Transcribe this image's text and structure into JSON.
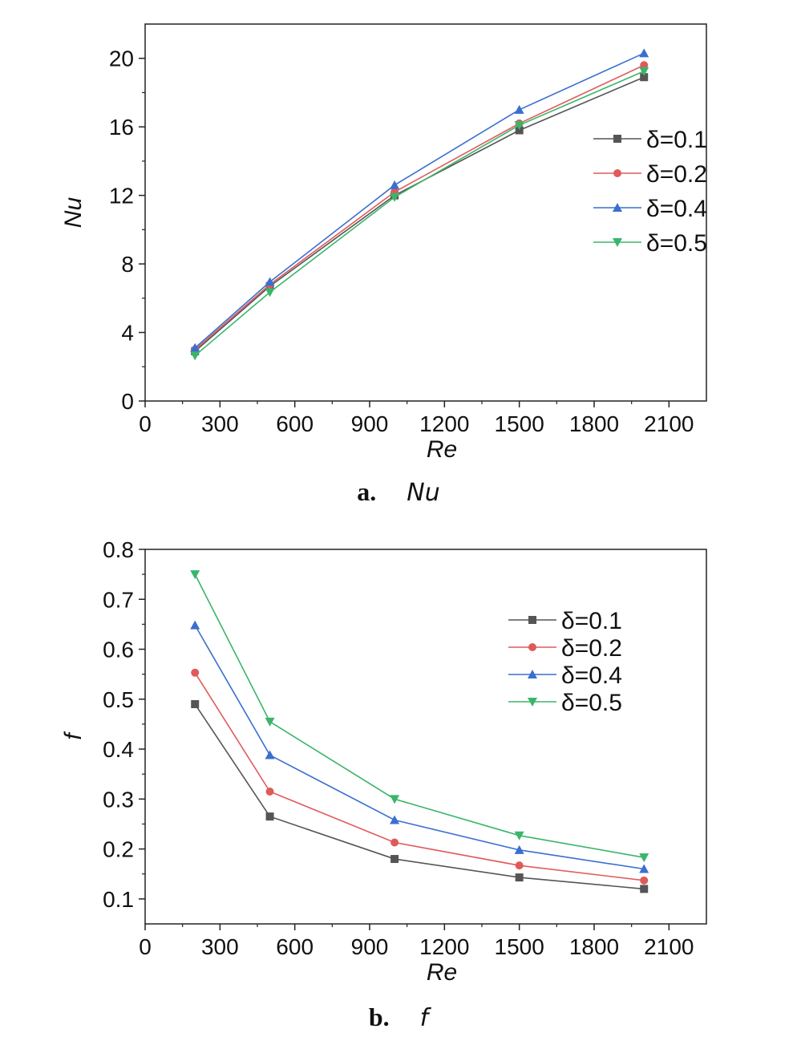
{
  "chart_data": [
    {
      "type": "line",
      "caption_letter": "a.",
      "caption_text": "Nu",
      "xlabel": "Re",
      "ylabel": "Nu",
      "xlim": [
        0,
        2250
      ],
      "ylim": [
        0,
        22
      ],
      "xticks": [
        0,
        300,
        600,
        900,
        1200,
        1500,
        1800,
        2100
      ],
      "yticks": [
        0,
        4,
        8,
        12,
        16,
        20
      ],
      "legend_position": "right",
      "x": [
        200,
        500,
        1000,
        1500,
        2000
      ],
      "series": [
        {
          "name": "δ=0.1",
          "color": "#555555",
          "marker": "square",
          "values": [
            2.9,
            6.7,
            12.0,
            15.8,
            18.9
          ]
        },
        {
          "name": "δ=0.2",
          "color": "#e05a5a",
          "marker": "circle",
          "values": [
            3.0,
            6.8,
            12.2,
            16.2,
            19.6
          ]
        },
        {
          "name": "δ=0.4",
          "color": "#3a6fd0",
          "marker": "triangle-up",
          "values": [
            3.1,
            6.95,
            12.6,
            17.0,
            20.3
          ]
        },
        {
          "name": "δ=0.5",
          "color": "#3ab56a",
          "marker": "triangle-down",
          "values": [
            2.65,
            6.35,
            11.9,
            16.1,
            19.25
          ]
        }
      ]
    },
    {
      "type": "line",
      "caption_letter": "b.",
      "caption_text": "f",
      "xlabel": "Re",
      "ylabel": "f",
      "xlim": [
        0,
        2250
      ],
      "ylim": [
        0.05,
        0.8
      ],
      "xticks": [
        0,
        300,
        600,
        900,
        1200,
        1500,
        1800,
        2100
      ],
      "yticks": [
        0.1,
        0.2,
        0.3,
        0.4,
        0.5,
        0.6,
        0.7,
        0.8
      ],
      "ytick_labels": [
        "0.1",
        "0.2",
        "0.3",
        "0.4",
        "0.5",
        "0.6",
        "0.7",
        "0.8"
      ],
      "legend_position": "top-right",
      "x": [
        200,
        500,
        1000,
        1500,
        2000
      ],
      "series": [
        {
          "name": "δ=0.1",
          "color": "#555555",
          "marker": "square",
          "values": [
            0.49,
            0.265,
            0.18,
            0.143,
            0.12
          ]
        },
        {
          "name": "δ=0.2",
          "color": "#e05a5a",
          "marker": "circle",
          "values": [
            0.553,
            0.315,
            0.213,
            0.167,
            0.137
          ]
        },
        {
          "name": "δ=0.4",
          "color": "#3a6fd0",
          "marker": "triangle-up",
          "values": [
            0.648,
            0.388,
            0.258,
            0.198,
            0.16
          ]
        },
        {
          "name": "δ=0.5",
          "color": "#3ab56a",
          "marker": "triangle-down",
          "values": [
            0.75,
            0.455,
            0.3,
            0.227,
            0.183
          ]
        }
      ]
    }
  ]
}
